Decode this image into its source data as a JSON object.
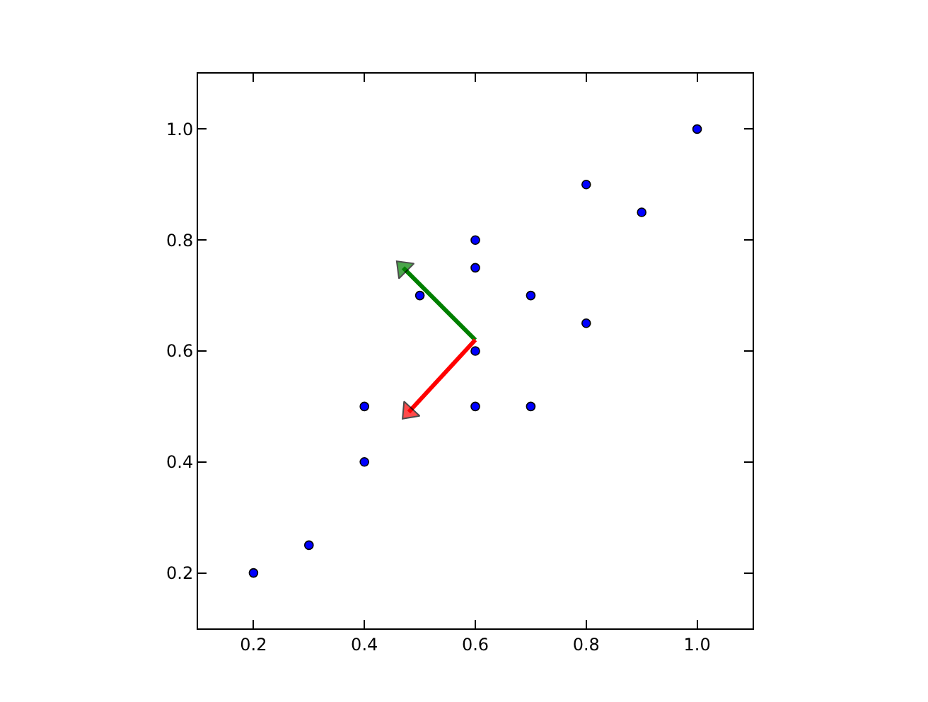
{
  "chart_data": {
    "type": "scatter",
    "xlim": [
      0.1,
      1.1
    ],
    "ylim": [
      0.1,
      1.1
    ],
    "xticks": [
      0.2,
      0.4,
      0.6,
      0.8,
      {
        "value": 1,
        "label": "1.0"
      }
    ],
    "yticks": [
      0.2,
      0.4,
      0.6,
      0.8,
      {
        "value": 1,
        "label": "1.0"
      }
    ],
    "grid": false,
    "legend": false,
    "marker": "circle",
    "series": [
      {
        "color": "#0000ff",
        "x": [
          0.2,
          0.3,
          0.4,
          0.4,
          0.5,
          0.6,
          0.6,
          0.6,
          0.6,
          0.7,
          0.7,
          0.8,
          0.8,
          0.9,
          1.0
        ],
        "values": [
          0.2,
          0.25,
          0.4,
          0.5,
          0.7,
          0.5,
          0.6,
          0.75,
          0.8,
          0.5,
          0.7,
          0.65,
          0.9,
          0.85,
          1.0
        ]
      },
      {
        "type": "line",
        "marker": "triangle",
        "color": "#007f00",
        "x": [
          0.6,
          0.47
        ],
        "values": [
          0.62,
          0.75
        ]
      },
      {
        "type": "line",
        "marker": "triangle",
        "color": "#ff0000",
        "x": [
          0.6,
          0.48
        ],
        "values": [
          0.62,
          0.49
        ]
      }
    ]
  }
}
